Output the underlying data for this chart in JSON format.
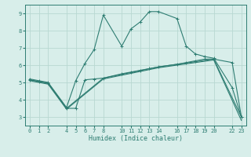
{
  "xlabel": "Humidex (Indice chaleur)",
  "bg_color": "#d8eeea",
  "grid_color": "#b8d8d2",
  "line_color": "#2e7d72",
  "xlim": [
    -0.5,
    23.5
  ],
  "ylim": [
    2.5,
    9.5
  ],
  "xticks": [
    0,
    1,
    2,
    4,
    5,
    6,
    7,
    8,
    10,
    11,
    12,
    13,
    14,
    16,
    17,
    18,
    19,
    20,
    22,
    23
  ],
  "yticks": [
    3,
    4,
    5,
    6,
    7,
    8,
    9
  ],
  "curve1_x": [
    0,
    1,
    2,
    4,
    5,
    6,
    7,
    8,
    10,
    11,
    12,
    13,
    14,
    16,
    17,
    18,
    19,
    20,
    22,
    23
  ],
  "curve1_y": [
    5.2,
    5.1,
    5.0,
    3.55,
    5.1,
    6.1,
    6.9,
    8.9,
    7.1,
    8.1,
    8.5,
    9.1,
    9.1,
    8.7,
    7.1,
    6.65,
    6.5,
    6.4,
    4.7,
    3.0
  ],
  "curve2_x": [
    0,
    1,
    2,
    4,
    5,
    6,
    7,
    8,
    10,
    11,
    12,
    13,
    14,
    16,
    17,
    18,
    19,
    20,
    22,
    23
  ],
  "curve2_y": [
    5.15,
    5.05,
    4.95,
    3.5,
    3.5,
    5.15,
    5.2,
    5.25,
    5.5,
    5.6,
    5.7,
    5.8,
    5.9,
    6.05,
    6.15,
    6.25,
    6.35,
    6.35,
    6.15,
    3.0
  ],
  "curve3_x": [
    0,
    2,
    4,
    8,
    14,
    20,
    23
  ],
  "curve3_y": [
    5.15,
    4.95,
    3.5,
    5.25,
    5.9,
    6.35,
    3.0
  ],
  "curve4_x": [
    0,
    2,
    4,
    8,
    14,
    20,
    23
  ],
  "curve4_y": [
    5.1,
    4.9,
    3.45,
    5.2,
    5.85,
    6.3,
    2.8
  ]
}
